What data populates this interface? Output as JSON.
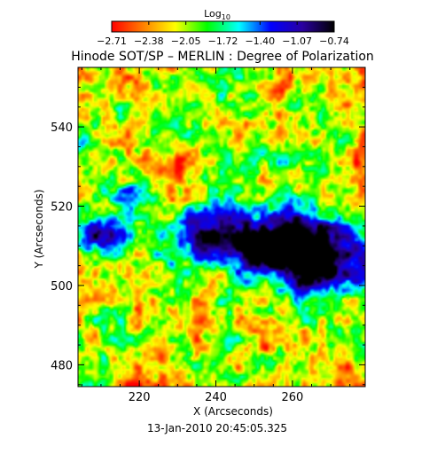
{
  "chart_data": {
    "type": "heatmap",
    "title": "Hinode SOT/SP – MERLIN : Degree of Polarization",
    "xlabel": "X (Arcseconds)",
    "ylabel": "Y (Arcseconds)",
    "xlim": [
      204,
      279
    ],
    "ylim": [
      474.5,
      555
    ],
    "x_ticks": [
      220,
      240,
      260
    ],
    "y_ticks": [
      480,
      500,
      520,
      540
    ],
    "timestamp": "13-Jan-2010 20:45:05.325",
    "colorbar": {
      "label": "Log",
      "label_subscript": "10",
      "range": [
        -2.71,
        -0.74
      ],
      "ticks": [
        "−2.71",
        "−2.38",
        "−2.05",
        "−1.72",
        "−1.40",
        "−1.07",
        "−0.74"
      ],
      "colormap": [
        "#ff0000",
        "#ff8000",
        "#ffff00",
        "#00ff00",
        "#00ffff",
        "#0000ff",
        "#2a00a0",
        "#000000"
      ]
    }
  }
}
